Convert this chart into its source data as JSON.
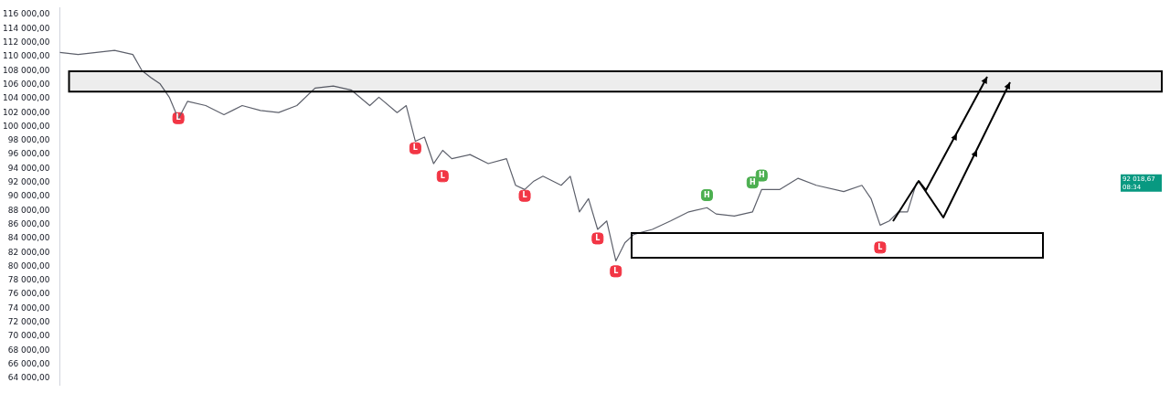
{
  "chart_data": {
    "type": "line",
    "categories": [
      null,
      null,
      null,
      null,
      null,
      null,
      null,
      null,
      null,
      null,
      null,
      null,
      null,
      null,
      null,
      null,
      null,
      null,
      null,
      null,
      null,
      null,
      null,
      null,
      null,
      null,
      null,
      null,
      null,
      null,
      null,
      null,
      null,
      null,
      null,
      null,
      null,
      null,
      null,
      null,
      null,
      null,
      null,
      null,
      null,
      null,
      null,
      null,
      null,
      null,
      null,
      null,
      null,
      null,
      null,
      null,
      null,
      null,
      null,
      null,
      null,
      null,
      null,
      null,
      null,
      null,
      null,
      null,
      null,
      null,
      null,
      null,
      null,
      null,
      null,
      null,
      null,
      null,
      null,
      null,
      null,
      null,
      null,
      null,
      null,
      null,
      null,
      null,
      null,
      null,
      null,
      null,
      null,
      null,
      null,
      null,
      null,
      null,
      null,
      null,
      null,
      null,
      null,
      null,
      null,
      null,
      null,
      null,
      null,
      null,
      null,
      null,
      null,
      null,
      null,
      null,
      null,
      null,
      null,
      null,
      null,
      null
    ],
    "series": [
      {
        "type": "line",
        "color": "#5d606b",
        "values": [
          110600,
          null,
          110300,
          null,
          110600,
          null,
          110900,
          null,
          110300,
          108000,
          107000,
          106100,
          104200,
          101100,
          103600,
          null,
          103000,
          null,
          101700,
          null,
          103000,
          null,
          102300,
          null,
          102000,
          null,
          103000,
          null,
          105500,
          null,
          105800,
          null,
          105200,
          null,
          103000,
          104200,
          null,
          102000,
          103000,
          97900,
          98500,
          94700,
          96600,
          95400,
          null,
          96000,
          null,
          94700,
          null,
          95400,
          91600,
          91000,
          92200,
          92900,
          null,
          91600,
          92900,
          87800,
          89700,
          85300,
          86500,
          80800,
          83400,
          84600,
          null,
          85300,
          null,
          86500,
          null,
          87800,
          null,
          88400,
          87500,
          null,
          87200,
          null,
          87800,
          91000,
          null,
          91000,
          null,
          92600,
          null,
          91600,
          null,
          null,
          90700,
          null,
          91600,
          89700,
          85900,
          86500,
          87800,
          87800,
          92000,
          null,
          null,
          null,
          null,
          null,
          null,
          null,
          null,
          null,
          null,
          null,
          null,
          null,
          null,
          null,
          null,
          null,
          null,
          null,
          null,
          null,
          null,
          null,
          null,
          null,
          null,
          null
        ]
      },
      {
        "type": "scatter",
        "color": "#f23645",
        "values": [
          null,
          null,
          null,
          null,
          null,
          null,
          null,
          null,
          null,
          null,
          null,
          null,
          null,
          101200,
          null,
          null,
          null,
          null,
          null,
          null,
          null,
          null,
          null,
          null,
          null,
          null,
          null,
          null,
          null,
          null,
          null,
          null,
          null,
          null,
          null,
          null,
          null,
          null,
          null,
          96900,
          null,
          null,
          92900,
          null,
          null,
          null,
          null,
          null,
          null,
          null,
          null,
          90100,
          null,
          null,
          null,
          null,
          null,
          null,
          null,
          84000,
          null,
          79300,
          null,
          null,
          null,
          null,
          null,
          null,
          null,
          null,
          null,
          null,
          null,
          null,
          null,
          null,
          null,
          null,
          null,
          null,
          null,
          null,
          null,
          null,
          null,
          null,
          null,
          null,
          null,
          null,
          82700,
          null,
          null,
          null,
          null,
          null,
          null,
          null,
          null,
          null,
          null,
          null,
          null,
          null,
          null,
          null,
          null,
          null,
          null,
          null,
          null,
          null,
          null,
          null,
          null,
          null,
          null,
          null,
          null,
          null,
          null,
          null
        ],
        "value_labels": [
          null,
          null,
          null,
          null,
          null,
          null,
          null,
          null,
          null,
          null,
          null,
          null,
          null,
          "L",
          null,
          null,
          null,
          null,
          null,
          null,
          null,
          null,
          null,
          null,
          null,
          null,
          null,
          null,
          null,
          null,
          null,
          null,
          null,
          null,
          null,
          null,
          null,
          null,
          null,
          "L",
          null,
          null,
          "L",
          null,
          null,
          null,
          null,
          null,
          null,
          null,
          null,
          "L",
          null,
          null,
          null,
          null,
          null,
          null,
          null,
          "L",
          null,
          "L",
          null,
          null,
          null,
          null,
          null,
          null,
          null,
          null,
          null,
          null,
          null,
          null,
          null,
          null,
          null,
          null,
          null,
          null,
          null,
          null,
          null,
          null,
          null,
          null,
          null,
          null,
          null,
          null,
          "L",
          null,
          null,
          null,
          null,
          null,
          null,
          null,
          null,
          null,
          null,
          null,
          null,
          null,
          null,
          null,
          null,
          null,
          null,
          null,
          null,
          null,
          null,
          null,
          null,
          null,
          null,
          null,
          null,
          null,
          null,
          null
        ]
      },
      {
        "type": "scatter",
        "color": "#4caf50",
        "values": [
          null,
          null,
          null,
          null,
          null,
          null,
          null,
          null,
          null,
          null,
          null,
          null,
          null,
          null,
          null,
          null,
          null,
          null,
          null,
          null,
          null,
          null,
          null,
          null,
          null,
          null,
          null,
          null,
          null,
          null,
          null,
          null,
          null,
          null,
          null,
          null,
          null,
          null,
          null,
          null,
          null,
          null,
          null,
          null,
          null,
          null,
          null,
          null,
          null,
          null,
          null,
          null,
          null,
          null,
          null,
          null,
          null,
          null,
          null,
          null,
          null,
          null,
          null,
          null,
          null,
          null,
          null,
          null,
          null,
          null,
          null,
          90200,
          null,
          null,
          null,
          null,
          92000,
          93000,
          null,
          null,
          null,
          null,
          null,
          null,
          null,
          null,
          null,
          null,
          null,
          null,
          null,
          null,
          null,
          null,
          null,
          null,
          null,
          null,
          null,
          null,
          null,
          null,
          null,
          null,
          null,
          null,
          null,
          null,
          null,
          null,
          null,
          null,
          null,
          null,
          null,
          null,
          null,
          null,
          null,
          null,
          null,
          null
        ],
        "value_labels": [
          null,
          null,
          null,
          null,
          null,
          null,
          null,
          null,
          null,
          null,
          null,
          null,
          null,
          null,
          null,
          null,
          null,
          null,
          null,
          null,
          null,
          null,
          null,
          null,
          null,
          null,
          null,
          null,
          null,
          null,
          null,
          null,
          null,
          null,
          null,
          null,
          null,
          null,
          null,
          null,
          null,
          null,
          null,
          null,
          null,
          null,
          null,
          null,
          null,
          null,
          null,
          null,
          null,
          null,
          null,
          null,
          null,
          null,
          null,
          null,
          null,
          null,
          null,
          null,
          null,
          null,
          null,
          null,
          null,
          null,
          null,
          "H",
          null,
          null,
          null,
          null,
          "H",
          "H",
          null,
          null,
          null,
          null,
          null,
          null,
          null,
          null,
          null,
          null,
          null,
          null,
          null,
          null,
          null,
          null,
          null,
          null,
          null,
          null,
          null,
          null,
          null,
          null,
          null,
          null,
          null,
          null,
          null,
          null,
          null,
          null,
          null,
          null,
          null,
          null,
          null,
          null,
          null,
          null,
          null,
          null,
          null,
          null
        ]
      }
    ],
    "ylim": [
      63000,
      117000
    ],
    "yticks": [
      {
        "value": 64000,
        "label": "64 000,00"
      },
      {
        "value": 66000,
        "label": "66 000,00"
      },
      {
        "value": 68000,
        "label": "68 000,00"
      },
      {
        "value": 70000,
        "label": "70 000,00"
      },
      {
        "value": 72000,
        "label": "72 000,00"
      },
      {
        "value": 74000,
        "label": "74 000,00"
      },
      {
        "value": 76000,
        "label": "76 000,00"
      },
      {
        "value": 78000,
        "label": "78 000,00"
      },
      {
        "value": 80000,
        "label": "80 000,00"
      },
      {
        "value": 82000,
        "label": "82 000,00"
      },
      {
        "value": 84000,
        "label": "84 000,00"
      },
      {
        "value": 86000,
        "label": "86 000,00"
      },
      {
        "value": 88000,
        "label": "88 000,00"
      },
      {
        "value": 90000,
        "label": "90 000,00"
      },
      {
        "value": 92000,
        "label": "92 000,00"
      },
      {
        "value": 94000,
        "label": "94 000,00"
      },
      {
        "value": 96000,
        "label": "96 000,00"
      },
      {
        "value": 98000,
        "label": "98 000,00"
      },
      {
        "value": 100000,
        "label": "100 000,00"
      },
      {
        "value": 102000,
        "label": "102 000,00"
      },
      {
        "value": 104000,
        "label": "104 000,00"
      },
      {
        "value": 106000,
        "label": "106 000,00"
      },
      {
        "value": 108000,
        "label": "108 000,00"
      },
      {
        "value": 110000,
        "label": "110 000,00"
      },
      {
        "value": 112000,
        "label": "112 000,00"
      },
      {
        "value": 114000,
        "label": "114 000,00"
      },
      {
        "value": 116000,
        "label": "116 000,00"
      }
    ],
    "bands": [
      {
        "axis": "y",
        "from": 105000,
        "to": 107900,
        "color": "#000000"
      }
    ],
    "annotations": [
      "92 018,67",
      "08:34"
    ],
    "tick_labels": "y",
    "line_style": "solid",
    "legend": false,
    "grid": false
  }
}
